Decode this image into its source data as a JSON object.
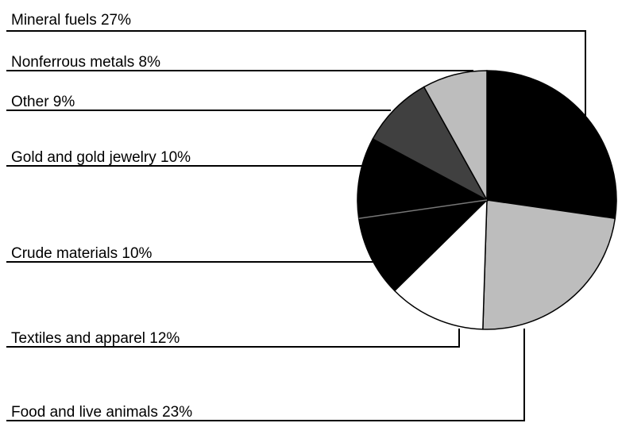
{
  "chart_data": {
    "type": "pie",
    "title": "",
    "start_angle_deg": 0,
    "direction": "clockwise",
    "unit": "%",
    "slices": [
      {
        "label": "Mineral fuels 27%",
        "value": 27,
        "color": "#000000"
      },
      {
        "label": "Food and live animals 23%",
        "value": 23,
        "color": "#bdbdbd"
      },
      {
        "label": "Textiles and apparel 12%",
        "value": 12,
        "color": "#ffffff"
      },
      {
        "label": "Crude materials 10%",
        "value": 10,
        "color": "#000000"
      },
      {
        "label": "Gold and gold jewelry 10%",
        "value": 10,
        "color": "#000000"
      },
      {
        "label": "Other 9%",
        "value": 9,
        "color": "#404040"
      },
      {
        "label": "Nonferrous metals 8%",
        "value": 8,
        "color": "#bdbdbd"
      }
    ],
    "legend": "leader-line labels on the left"
  }
}
